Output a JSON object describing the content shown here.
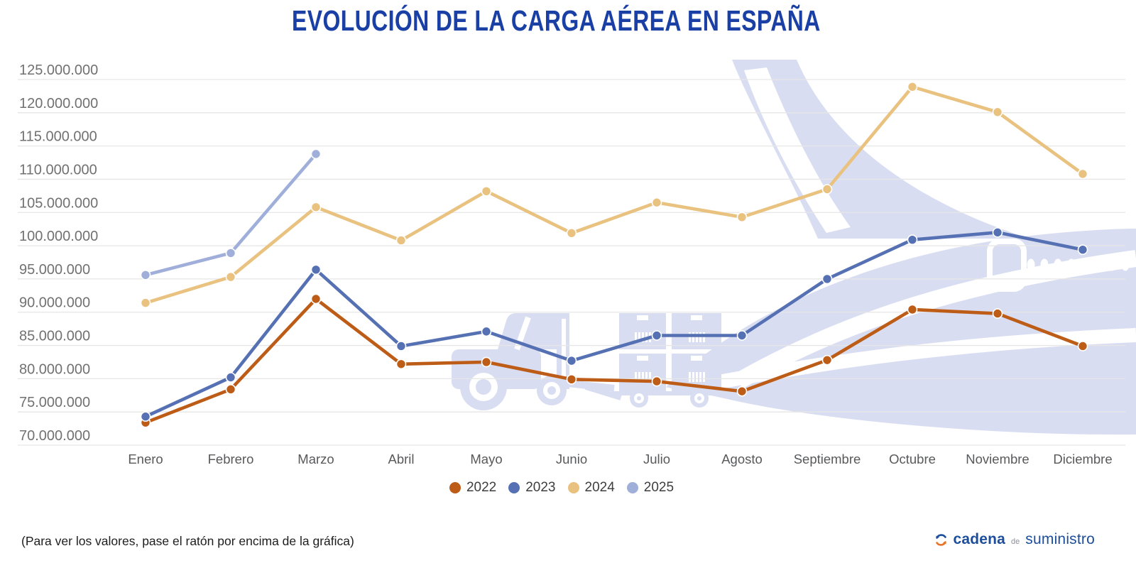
{
  "page": {
    "title": "EVOLUCIÓN DE LA CARGA AÉREA EN ESPAÑA",
    "hover_hint": "(Para ver los valores, pase el ratón por encima de la gráfica)",
    "logo": {
      "brand_1": "cadena",
      "brand_2": "de",
      "brand_3": "suministro"
    }
  },
  "chart_data": {
    "type": "line",
    "title": "EVOLUCIÓN DE LA CARGA AÉREA EN ESPAÑA",
    "categories": [
      "Enero",
      "Febrero",
      "Marzo",
      "Abril",
      "Mayo",
      "Junio",
      "Julio",
      "Agosto",
      "Septiembre",
      "Octubre",
      "Noviembre",
      "Diciembre"
    ],
    "series": [
      {
        "name": "2022",
        "color": "#bd5c17",
        "values": [
          73400000,
          78400000,
          92000000,
          82200000,
          82500000,
          79900000,
          79600000,
          78100000,
          82800000,
          90400000,
          89800000,
          84900000
        ]
      },
      {
        "name": "2023",
        "color": "#5571b3",
        "values": [
          74300000,
          80200000,
          96400000,
          84900000,
          87100000,
          82700000,
          86500000,
          86500000,
          95000000,
          100900000,
          102000000,
          99400000
        ]
      },
      {
        "name": "2024",
        "color": "#e9c280",
        "values": [
          91400000,
          95300000,
          105800000,
          100800000,
          108200000,
          101900000,
          106500000,
          104300000,
          108500000,
          123900000,
          120100000,
          110800000
        ]
      },
      {
        "name": "2025",
        "color": "#9fafda",
        "values": [
          95600000,
          98900000,
          113800000
        ]
      }
    ],
    "ylim": [
      70000000,
      125000000
    ],
    "ytick_step": 5000000,
    "yticks": [
      {
        "value": 70000000,
        "label": "70.000.000"
      },
      {
        "value": 75000000,
        "label": "75.000.000"
      },
      {
        "value": 80000000,
        "label": "80.000.000"
      },
      {
        "value": 85000000,
        "label": "85.000.000"
      },
      {
        "value": 90000000,
        "label": "90.000.000"
      },
      {
        "value": 95000000,
        "label": "95.000.000"
      },
      {
        "value": 100000000,
        "label": "100.000.000"
      },
      {
        "value": 105000000,
        "label": "105.000.000"
      },
      {
        "value": 110000000,
        "label": "110.000.000"
      },
      {
        "value": 115000000,
        "label": "115.000.000"
      },
      {
        "value": 120000000,
        "label": "120.000.000"
      },
      {
        "value": 125000000,
        "label": "125.000.000"
      }
    ],
    "grid": "horizontal",
    "legend_position": "bottom",
    "xlabel": "",
    "ylabel": ""
  },
  "colors": {
    "title_blue": "#1a3fa5",
    "axis_label": "#717171",
    "month_label": "#58595b",
    "grid": "#e6e6e6",
    "legend_text": "#3e3e3e",
    "watermark": "#d9ddf1",
    "footer_text": "#1e1e1e",
    "logo_blue": "#1d4e9b",
    "logo_gray": "#8a8f98",
    "logo_orange": "#e87426"
  }
}
